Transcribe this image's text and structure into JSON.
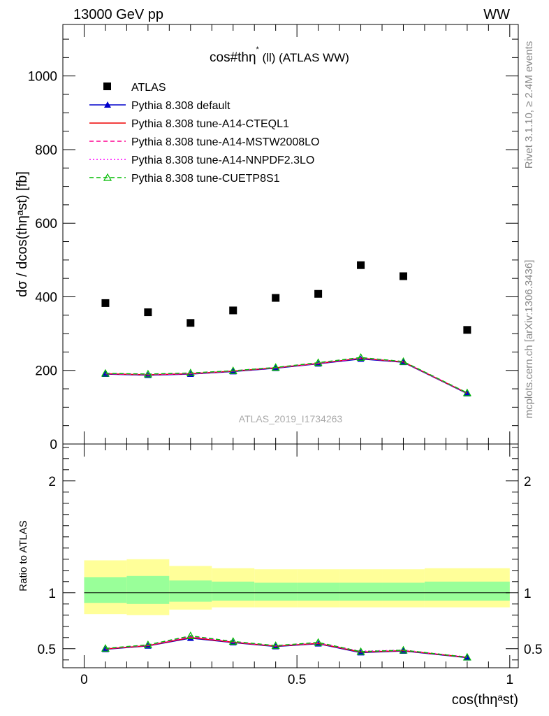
{
  "header": {
    "left": "13000 GeV pp",
    "right": "WW"
  },
  "side_labels": {
    "rivet": "Rivet 3.1.10, ≥ 2.4M events",
    "mcplots": "mcplots.cern.ch [arXiv:1306.3436]"
  },
  "watermark": "ATLAS_2019_I1734263",
  "chart_data": [
    {
      "panel": "main",
      "type": "line",
      "title": "cos#thη^{*} (ll) (ATLAS WW)",
      "title_main": "cos#thη",
      "title_sup": "*",
      "title_rest": " (ll) (ATLAS WW)",
      "ylabel": "dσ / dcos(thηᵃst) [fb]",
      "xlim": [
        -0.05,
        1.02
      ],
      "ylim": [
        0,
        1140
      ],
      "y_major_ticks": [
        0,
        200,
        400,
        600,
        800,
        1000
      ],
      "y_tick_labels": [
        "0",
        "200",
        "400",
        "600",
        "800",
        "1000"
      ],
      "legend_position": "top-left",
      "legend": [
        {
          "label": "ATLAS",
          "style": "marker-square",
          "color": "#000000"
        },
        {
          "label": "Pythia 8.308 default",
          "style": "solid-triangle",
          "color": "#0000cc"
        },
        {
          "label": "Pythia 8.308 tune-A14-CTEQL1",
          "style": "solid",
          "color": "#ee0000"
        },
        {
          "label": "Pythia 8.308 tune-A14-MSTW2008LO",
          "style": "dashed",
          "color": "#ff0090"
        },
        {
          "label": "Pythia 8.308 tune-A14-NNPDF2.3LO",
          "style": "dotted",
          "color": "#ff00ff"
        },
        {
          "label": "Pythia 8.308 tune-CUETP8S1",
          "style": "dashed-open-triangle",
          "color": "#00bb00"
        }
      ],
      "series": [
        {
          "name": "ATLAS",
          "color": "#000000",
          "x": [
            0.05,
            0.15,
            0.25,
            0.35,
            0.45,
            0.55,
            0.65,
            0.75,
            0.9
          ],
          "y": [
            383,
            358,
            329,
            363,
            397,
            408,
            486,
            456,
            310
          ]
        },
        {
          "name": "Pythia 8.308 default",
          "color": "#0000cc",
          "x": [
            0.05,
            0.15,
            0.25,
            0.35,
            0.45,
            0.55,
            0.65,
            0.75,
            0.9
          ],
          "y": [
            190,
            187,
            190,
            197,
            206,
            218,
            231,
            222,
            137
          ]
        },
        {
          "name": "Pythia 8.308 tune-A14-CTEQL1",
          "color": "#ee0000",
          "x": [
            0.05,
            0.15,
            0.25,
            0.35,
            0.45,
            0.55,
            0.65,
            0.75,
            0.9
          ],
          "y": [
            191,
            188,
            191,
            198,
            207,
            219,
            233,
            223,
            138
          ]
        },
        {
          "name": "Pythia 8.308 tune-A14-MSTW2008LO",
          "color": "#ff0090",
          "x": [
            0.05,
            0.15,
            0.25,
            0.35,
            0.45,
            0.55,
            0.65,
            0.75,
            0.9
          ],
          "y": [
            191,
            188,
            191,
            198,
            207,
            219,
            233,
            223,
            138
          ]
        },
        {
          "name": "Pythia 8.308 tune-A14-NNPDF2.3LO",
          "color": "#ff00ff",
          "x": [
            0.05,
            0.15,
            0.25,
            0.35,
            0.45,
            0.55,
            0.65,
            0.75,
            0.9
          ],
          "y": [
            192,
            189,
            192,
            199,
            208,
            220,
            234,
            224,
            139
          ]
        },
        {
          "name": "Pythia 8.308 tune-CUETP8S1",
          "color": "#00bb00",
          "x": [
            0.05,
            0.15,
            0.25,
            0.35,
            0.45,
            0.55,
            0.65,
            0.75,
            0.9
          ],
          "y": [
            192,
            190,
            193,
            199,
            208,
            221,
            235,
            224,
            139
          ]
        }
      ]
    },
    {
      "panel": "ratio",
      "type": "line",
      "ylabel": "Ratio to ATLAS",
      "xlabel": "cos(thηᵃst)",
      "xlim": [
        -0.05,
        1.02
      ],
      "ylim": [
        0.33,
        2.33
      ],
      "x_major_ticks": [
        0,
        0.5,
        1
      ],
      "x_tick_labels": [
        "0",
        "0.5",
        "1"
      ],
      "y_major_ticks": [
        0.5,
        1,
        2
      ],
      "y_tick_labels": [
        "0.5",
        "1",
        "2"
      ],
      "reference_line": 1,
      "bands": {
        "bin_edges": [
          0,
          0.1,
          0.2,
          0.3,
          0.4,
          0.5,
          0.6,
          0.7,
          0.8,
          1.0
        ],
        "inner_color": "#99ff99",
        "outer_color": "#ffff99",
        "inner_low": [
          0.91,
          0.9,
          0.92,
          0.93,
          0.93,
          0.93,
          0.93,
          0.93,
          0.93
        ],
        "inner_high": [
          1.14,
          1.15,
          1.11,
          1.1,
          1.09,
          1.09,
          1.09,
          1.09,
          1.1
        ],
        "outer_low": [
          0.81,
          0.8,
          0.85,
          0.87,
          0.87,
          0.87,
          0.87,
          0.87,
          0.87
        ],
        "outer_high": [
          1.29,
          1.3,
          1.24,
          1.22,
          1.21,
          1.21,
          1.21,
          1.21,
          1.22
        ]
      },
      "series": [
        {
          "name": "Pythia 8.308 default",
          "color": "#0000cc",
          "x": [
            0.05,
            0.15,
            0.25,
            0.35,
            0.45,
            0.55,
            0.65,
            0.75,
            0.9
          ],
          "y": [
            0.495,
            0.525,
            0.595,
            0.555,
            0.52,
            0.545,
            0.465,
            0.48,
            0.42
          ]
        },
        {
          "name": "Pythia 8.308 tune-A14-CTEQL1",
          "color": "#ee0000",
          "x": [
            0.05,
            0.15,
            0.25,
            0.35,
            0.45,
            0.55,
            0.65,
            0.75,
            0.9
          ],
          "y": [
            0.498,
            0.528,
            0.6,
            0.558,
            0.523,
            0.548,
            0.47,
            0.483,
            0.423
          ]
        },
        {
          "name": "Pythia 8.308 tune-A14-MSTW2008LO",
          "color": "#ff0090",
          "x": [
            0.05,
            0.15,
            0.25,
            0.35,
            0.45,
            0.55,
            0.65,
            0.75,
            0.9
          ],
          "y": [
            0.5,
            0.53,
            0.605,
            0.56,
            0.525,
            0.55,
            0.472,
            0.485,
            0.425
          ]
        },
        {
          "name": "Pythia 8.308 tune-A14-NNPDF2.3LO",
          "color": "#ff00ff",
          "x": [
            0.05,
            0.15,
            0.25,
            0.35,
            0.45,
            0.55,
            0.65,
            0.75,
            0.9
          ],
          "y": [
            0.502,
            0.532,
            0.612,
            0.563,
            0.527,
            0.553,
            0.478,
            0.488,
            0.426
          ]
        },
        {
          "name": "Pythia 8.308 tune-CUETP8S1",
          "color": "#00bb00",
          "x": [
            0.05,
            0.15,
            0.25,
            0.35,
            0.45,
            0.55,
            0.65,
            0.75,
            0.9
          ],
          "y": [
            0.503,
            0.535,
            0.615,
            0.565,
            0.528,
            0.556,
            0.474,
            0.487,
            0.424
          ]
        }
      ]
    }
  ]
}
